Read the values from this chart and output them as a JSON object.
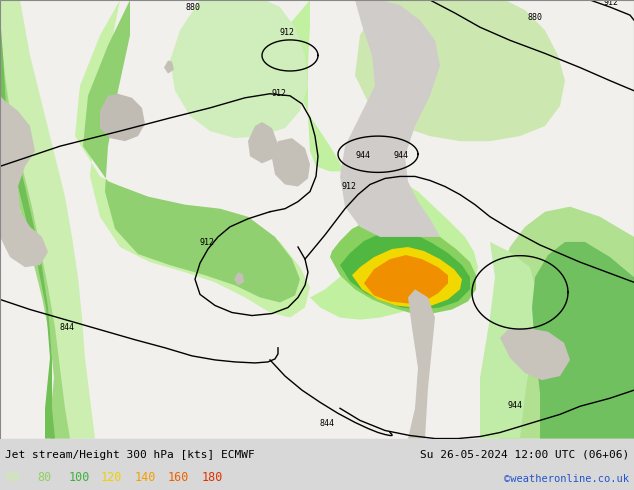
{
  "title_left": "Jet stream/Height 300 hPa [kts] ECMWF",
  "title_right": "Su 26-05-2024 12:00 UTC (06+06)",
  "credit": "©weatheronline.co.uk",
  "legend_values": [
    60,
    80,
    100,
    120,
    140,
    160,
    180
  ],
  "legend_colors": [
    "#c8f0a0",
    "#90d060",
    "#40b040",
    "#f0d000",
    "#f0a000",
    "#f06000",
    "#e03000"
  ],
  "bg_color": "#d8d8d8",
  "fig_width": 6.34,
  "fig_height": 4.9,
  "dpi": 100,
  "font_size_title": 8.0,
  "font_size_legend": 8.5,
  "font_size_credit": 7.5,
  "map_bg": "#f0eeea",
  "ocean_color": "#f0eeea",
  "land_color": "#e8e6e2",
  "jet_light_green": "#c8f0b0",
  "jet_mid_green": "#90d870",
  "jet_dark_green": "#40b040",
  "jet_yellow": "#f0d800",
  "jet_orange": "#f0a000",
  "jet_dark_orange": "#e06000"
}
